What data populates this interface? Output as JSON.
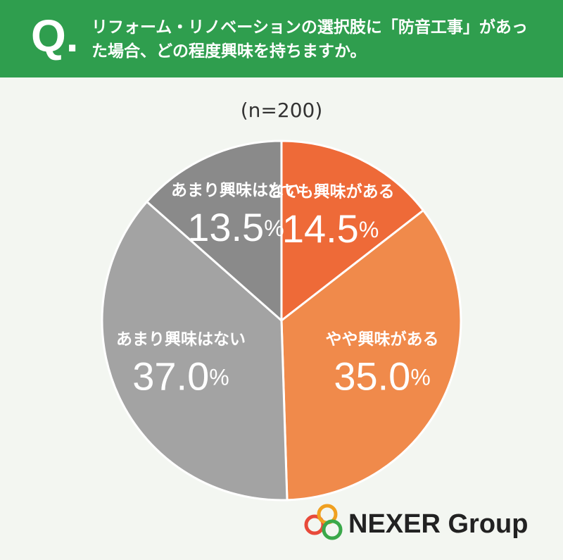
{
  "header": {
    "q": "Q."
  },
  "chart_data": {
    "type": "pie",
    "title": "リフォーム・リノベーションの選択肢に「防音工事」があった場合、どの程度興味を持ちますか。",
    "subtitle": "(n=200)",
    "categories": [
      "とても興味がある",
      "やや興味がある",
      "あまり興味はない",
      "あまり興味はない"
    ],
    "values": [
      14.5,
      35.0,
      37.0,
      13.5
    ],
    "value_labels": [
      "14.5%",
      "35.0%",
      "37.0%",
      "13.5%"
    ],
    "colors": [
      "#ee6a38",
      "#f08a4b",
      "#a3a3a3",
      "#8a8a8a"
    ]
  },
  "logo": "NEXER Group"
}
